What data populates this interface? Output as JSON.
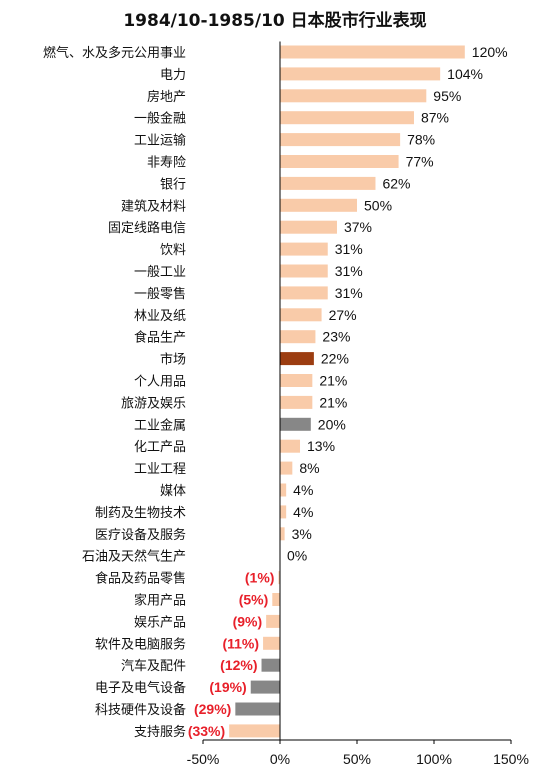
{
  "chart_data": {
    "type": "bar",
    "orientation": "horizontal",
    "title": "1984/10-1985/10 日本股市行业表现",
    "xlim": [
      -50,
      150
    ],
    "x_ticks": [
      -50,
      0,
      50,
      100,
      150
    ],
    "x_tick_labels": [
      "-50%",
      "0%",
      "50%",
      "100%",
      "150%"
    ],
    "grid": false,
    "colors": {
      "default": "#f9cba9",
      "highlight": "#9c3d11",
      "grey": "#878787",
      "negative_label": "#e8202a",
      "axis": "#000000"
    },
    "categories": [
      "燃气、水及多元公用事业",
      "电力",
      "房地产",
      "一般金融",
      "工业运输",
      "非寿险",
      "银行",
      "建筑及材料",
      "固定线路电信",
      "饮料",
      "一般工业",
      "一般零售",
      "林业及纸",
      "食品生产",
      "市场",
      "个人用品",
      "旅游及娱乐",
      "工业金属",
      "化工产品",
      "工业工程",
      "媒体",
      "制药及生物技术",
      "医疗设备及服务",
      "石油及天然气生产",
      "食品及药品零售",
      "家用产品",
      "娱乐产品",
      "软件及电脑服务",
      "汽车及配件",
      "电子及电气设备",
      "科技硬件及设备",
      "支持服务"
    ],
    "values": [
      120,
      104,
      95,
      87,
      78,
      77,
      62,
      50,
      37,
      31,
      31,
      31,
      27,
      23,
      22,
      21,
      21,
      20,
      13,
      8,
      4,
      4,
      3,
      0,
      -1,
      -5,
      -9,
      -11,
      -12,
      -19,
      -29,
      -33
    ],
    "value_labels": [
      "120%",
      "104%",
      "95%",
      "87%",
      "78%",
      "77%",
      "62%",
      "50%",
      "37%",
      "31%",
      "31%",
      "31%",
      "27%",
      "23%",
      "22%",
      "21%",
      "21%",
      "20%",
      "13%",
      "8%",
      "4%",
      "4%",
      "3%",
      "0%",
      "(1%)",
      "(5%)",
      "(9%)",
      "(11%)",
      "(12%)",
      "(19%)",
      "(29%)",
      "(33%)"
    ],
    "bar_colors": [
      "default",
      "default",
      "default",
      "default",
      "default",
      "default",
      "default",
      "default",
      "default",
      "default",
      "default",
      "default",
      "default",
      "default",
      "highlight",
      "default",
      "default",
      "grey",
      "default",
      "default",
      "default",
      "default",
      "default",
      "default",
      "default",
      "default",
      "default",
      "default",
      "grey",
      "grey",
      "grey",
      "default"
    ]
  }
}
